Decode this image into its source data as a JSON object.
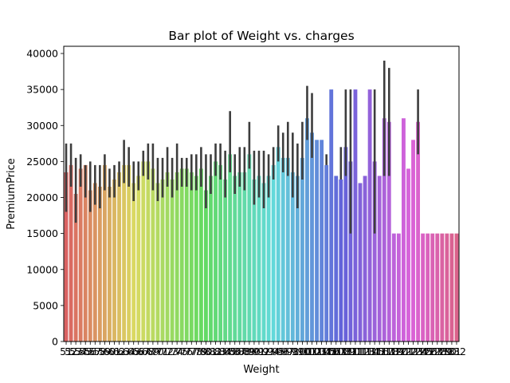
{
  "chart_data": {
    "type": "bar",
    "title": "Bar plot of Weight vs. charges",
    "xlabel": "Weight",
    "ylabel": "PremiumPrice",
    "ylim": [
      0,
      41000
    ],
    "yticks": [
      0,
      5000,
      10000,
      15000,
      20000,
      25000,
      30000,
      35000,
      40000
    ],
    "grid": false,
    "error_bars": true,
    "categories": [
      51,
      52,
      53,
      54,
      55,
      56,
      57,
      58,
      59,
      60,
      61,
      62,
      63,
      64,
      65,
      66,
      67,
      68,
      69,
      70,
      71,
      72,
      73,
      74,
      75,
      76,
      77,
      78,
      79,
      80,
      81,
      82,
      83,
      84,
      85,
      86,
      87,
      88,
      89,
      90,
      91,
      92,
      93,
      94,
      95,
      96,
      97,
      98,
      99,
      100,
      101,
      102,
      103,
      104,
      105,
      106,
      107,
      108,
      109,
      110,
      111,
      112,
      113,
      114,
      115,
      116,
      117,
      118,
      119,
      120,
      121,
      122,
      123,
      124,
      125,
      126,
      127,
      128,
      129,
      130,
      131,
      132
    ],
    "values": [
      23500,
      24500,
      20500,
      24000,
      24500,
      21000,
      22000,
      21500,
      24500,
      21500,
      22500,
      23500,
      24500,
      24500,
      22000,
      23000,
      25000,
      25000,
      24000,
      22000,
      22500,
      23500,
      22500,
      23500,
      24000,
      24000,
      23500,
      23000,
      24000,
      21000,
      23000,
      25000,
      24500,
      22500,
      26000,
      23000,
      23500,
      23500,
      26000,
      22500,
      23000,
      22000,
      23000,
      24500,
      27000,
      25500,
      25500,
      23500,
      23000,
      25500,
      31000,
      29000,
      28000,
      28000,
      24500,
      35000,
      23000,
      22500,
      27000,
      25000,
      35000,
      22000,
      23000,
      35000,
      25000,
      23000,
      31000,
      30500,
      15000,
      15000,
      31000,
      24000,
      28000,
      30500,
      15000,
      15000,
      15000,
      15000,
      15000,
      15000,
      15000,
      15000
    ],
    "error_low": [
      18000,
      21500,
      16500,
      21500,
      20000,
      18000,
      19000,
      18500,
      21000,
      20000,
      20000,
      21500,
      22000,
      21500,
      19500,
      21000,
      23000,
      22500,
      21000,
      19500,
      20000,
      21500,
      20000,
      21000,
      21500,
      21500,
      21000,
      21000,
      21500,
      18500,
      20500,
      23000,
      22500,
      20000,
      23500,
      20500,
      21500,
      21000,
      24000,
      19000,
      20000,
      18500,
      20000,
      22500,
      25000,
      23500,
      23000,
      20000,
      18500,
      22500,
      28000,
      25500,
      28000,
      28000,
      24500,
      35000,
      23000,
      22500,
      23000,
      15000,
      35000,
      22000,
      23000,
      35000,
      15000,
      23000,
      23000,
      23000,
      15000,
      15000,
      31000,
      24000,
      28000,
      26000,
      15000,
      15000,
      15000,
      15000,
      15000,
      15000,
      15000,
      15000
    ],
    "error_high": [
      27500,
      27500,
      25500,
      26000,
      24500,
      25000,
      24500,
      24500,
      26000,
      24000,
      24500,
      25000,
      28000,
      27000,
      25000,
      25000,
      26500,
      27500,
      27500,
      25500,
      25500,
      27000,
      25500,
      27500,
      25500,
      25500,
      26000,
      26000,
      27000,
      26000,
      26000,
      27500,
      27500,
      26500,
      32000,
      26000,
      27000,
      27000,
      30500,
      26500,
      26500,
      26500,
      26000,
      27000,
      30000,
      29000,
      30500,
      29000,
      27500,
      30500,
      35500,
      34500,
      28000,
      28000,
      26000,
      35000,
      23000,
      27000,
      35000,
      35000,
      35000,
      22000,
      23000,
      35000,
      35000,
      23000,
      39000,
      38000,
      15000,
      15000,
      31000,
      24000,
      28000,
      35000,
      15000,
      15000,
      15000,
      15000,
      15000,
      15000,
      15000,
      15000
    ]
  }
}
